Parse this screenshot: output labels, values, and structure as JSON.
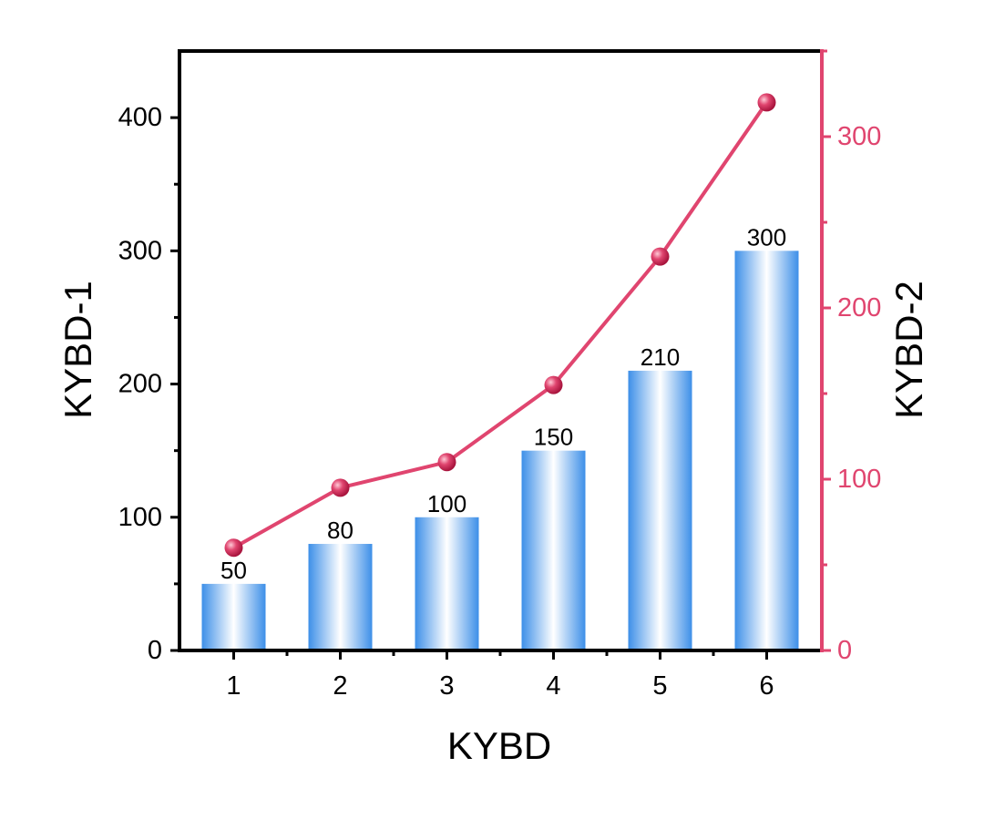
{
  "chart_data": {
    "type": "bar",
    "categories": [
      "1",
      "2",
      "3",
      "4",
      "5",
      "6"
    ],
    "series": [
      {
        "values": [
          50,
          80,
          100,
          150,
          210,
          300
        ],
        "axis": "left",
        "render": "bar",
        "data_labels": [
          "50",
          "80",
          "100",
          "150",
          "210",
          "300"
        ]
      },
      {
        "values": [
          60,
          95,
          110,
          155,
          230,
          320
        ],
        "axis": "right",
        "render": "line",
        "markers": "circle"
      }
    ],
    "xlabel": "KYBD",
    "ylabel": "KYBD-1",
    "y2label": "KYBD-2",
    "ylim": [
      0,
      450
    ],
    "y2lim": [
      0,
      350
    ],
    "yticks": [
      0,
      100,
      200,
      300,
      400
    ],
    "y2ticks": [
      0,
      100,
      200,
      300
    ],
    "grid": false,
    "legend": "none",
    "colors": {
      "bar_edge": "#3d8fe8",
      "bar_center": "#ffffff",
      "line": "#e0456f",
      "right_axis": "#e0456f",
      "left_axis": "#000000"
    }
  }
}
